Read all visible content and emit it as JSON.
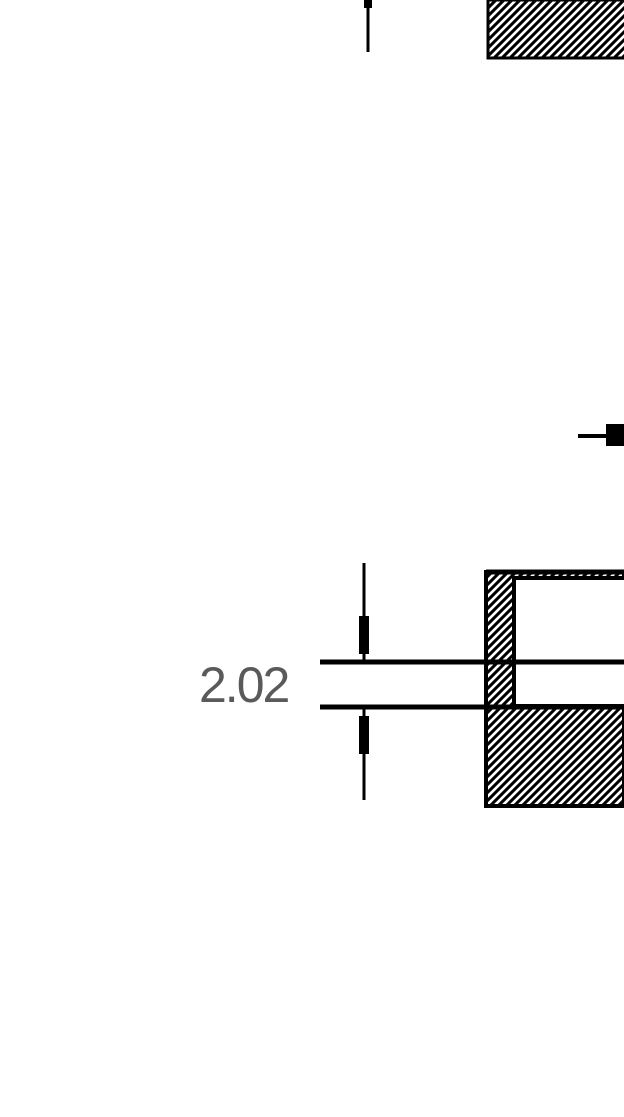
{
  "drawing": {
    "dimension_label": "2.02",
    "colors": {
      "background": "#ffffff",
      "line": "#000000",
      "text": "#5a5a5a",
      "hatch_fill": "#000000"
    },
    "hatch_pattern": "crosshatch-section"
  }
}
